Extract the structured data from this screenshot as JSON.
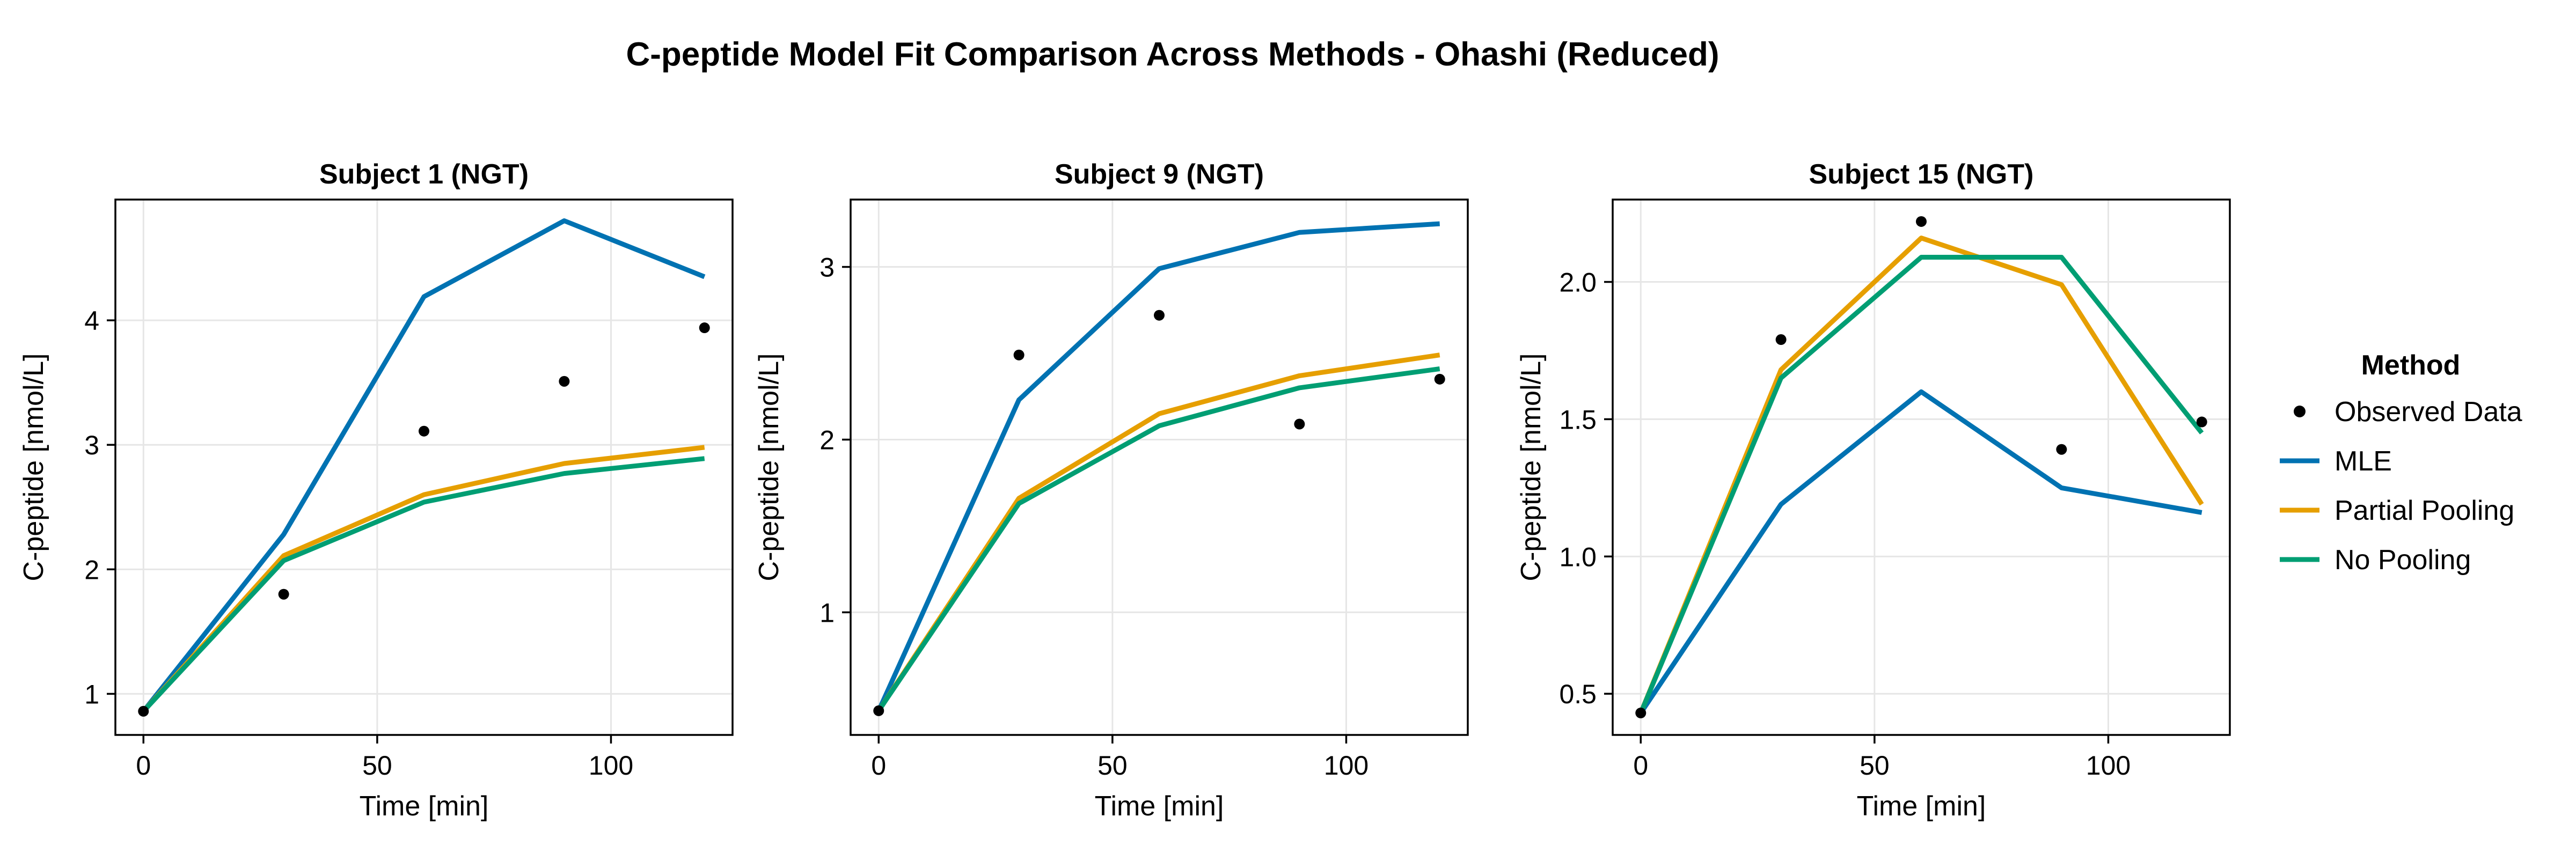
{
  "figure": {
    "title": "C-peptide Model Fit Comparison Across Methods - Ohashi (Reduced)"
  },
  "legend": {
    "title": "Method",
    "entries": [
      {
        "label": "Observed Data",
        "kind": "marker",
        "color": "#000000"
      },
      {
        "label": "MLE",
        "kind": "line",
        "color": "#0072B2"
      },
      {
        "label": "Partial Pooling",
        "kind": "line",
        "color": "#E69F00"
      },
      {
        "label": "No Pooling",
        "kind": "line",
        "color": "#009E73"
      }
    ]
  },
  "chart_data": [
    {
      "type": "line",
      "title": "Subject 1 (NGT)",
      "xlabel": "Time [min]",
      "ylabel": "C-peptide [nmol/L]",
      "xlim": [
        -6,
        126
      ],
      "ylim": [
        0.67,
        4.97
      ],
      "xticks": [
        0,
        50,
        100
      ],
      "yticks": [
        1,
        2,
        3,
        4
      ],
      "grid": true,
      "x": [
        0,
        30,
        60,
        90,
        120
      ],
      "observed": [
        0.86,
        1.8,
        3.11,
        3.51,
        3.94
      ],
      "series": [
        {
          "name": "MLE",
          "color": "#0072B2",
          "values": [
            0.86,
            2.28,
            4.19,
            4.8,
            4.35
          ]
        },
        {
          "name": "Partial Pooling",
          "color": "#E69F00",
          "values": [
            0.86,
            2.11,
            2.6,
            2.85,
            2.98
          ]
        },
        {
          "name": "No Pooling",
          "color": "#009E73",
          "values": [
            0.86,
            2.07,
            2.54,
            2.77,
            2.89
          ]
        }
      ]
    },
    {
      "type": "line",
      "title": "Subject 9 (NGT)",
      "xlabel": "Time [min]",
      "ylabel": "C-peptide [nmol/L]",
      "xlim": [
        -6,
        126
      ],
      "ylim": [
        0.29,
        3.39
      ],
      "xticks": [
        0,
        50,
        100
      ],
      "yticks": [
        1,
        2,
        3
      ],
      "grid": true,
      "x": [
        0,
        30,
        60,
        90,
        120
      ],
      "observed": [
        0.43,
        2.49,
        2.72,
        2.09,
        2.35
      ],
      "series": [
        {
          "name": "MLE",
          "color": "#0072B2",
          "values": [
            0.43,
            2.23,
            2.99,
            3.2,
            3.25
          ]
        },
        {
          "name": "Partial Pooling",
          "color": "#E69F00",
          "values": [
            0.43,
            1.66,
            2.15,
            2.37,
            2.49
          ]
        },
        {
          "name": "No Pooling",
          "color": "#009E73",
          "values": [
            0.43,
            1.63,
            2.08,
            2.3,
            2.41
          ]
        }
      ]
    },
    {
      "type": "line",
      "title": "Subject 15 (NGT)",
      "xlabel": "Time [min]",
      "ylabel": "C-peptide [nmol/L]",
      "xlim": [
        -6,
        126
      ],
      "ylim": [
        0.35,
        2.3
      ],
      "xticks": [
        0,
        50,
        100
      ],
      "yticks": [
        0.5,
        1.0,
        1.5,
        2.0
      ],
      "ytickLabels": [
        "0.5",
        "1.0",
        "1.5",
        "2.0"
      ],
      "grid": true,
      "x": [
        0,
        30,
        60,
        90,
        120
      ],
      "observed": [
        0.43,
        1.79,
        2.22,
        1.39,
        1.49
      ],
      "series": [
        {
          "name": "MLE",
          "color": "#0072B2",
          "values": [
            0.43,
            1.19,
            1.6,
            1.25,
            1.16
          ]
        },
        {
          "name": "Partial Pooling",
          "color": "#E69F00",
          "values": [
            0.43,
            1.68,
            2.16,
            1.99,
            1.19
          ]
        },
        {
          "name": "No Pooling",
          "color": "#009E73",
          "values": [
            0.43,
            1.65,
            2.09,
            2.09,
            1.45
          ]
        }
      ]
    }
  ]
}
